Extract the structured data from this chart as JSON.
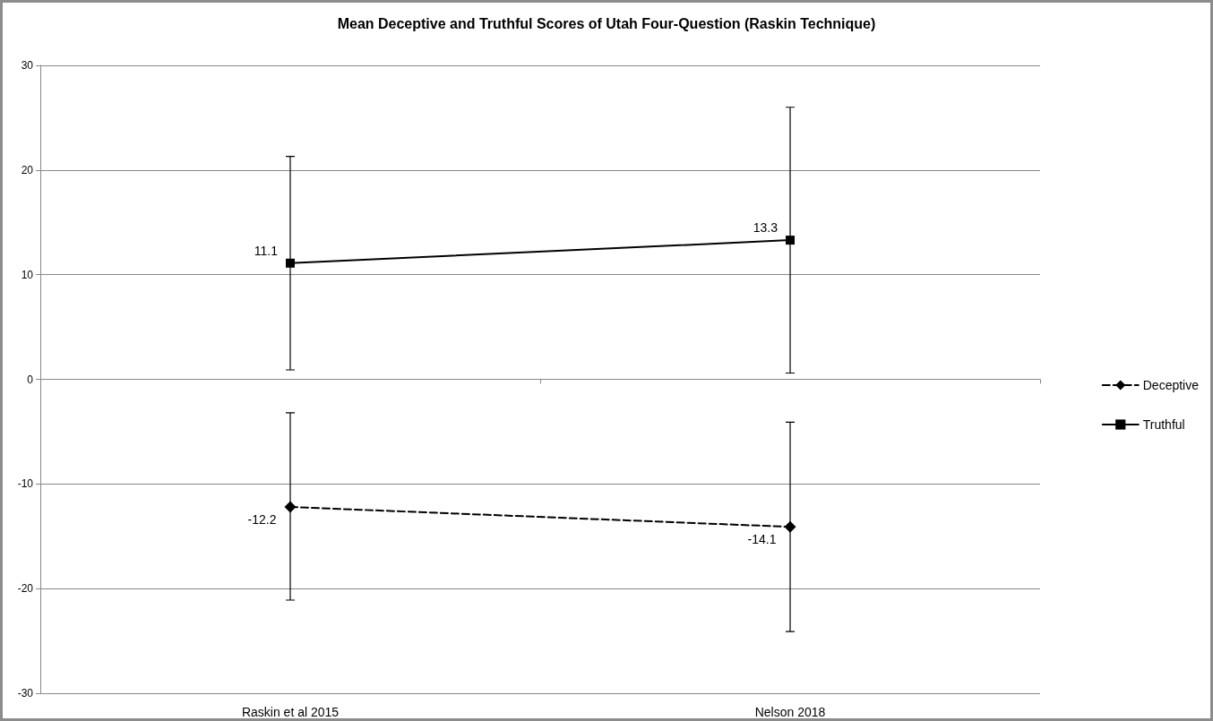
{
  "chart_data": {
    "type": "line",
    "title": "Mean Deceptive and Truthful Scores of Utah Four-Question (Raskin Technique)",
    "categories": [
      "Raskin et al 2015",
      "Nelson 2018"
    ],
    "series": [
      {
        "name": "Deceptive",
        "color": "#000000",
        "values": [
          -12.2,
          -14.1
        ],
        "errors": [
          [
            -21.1,
            -3.2
          ],
          [
            -24.1,
            -4.1
          ]
        ],
        "marker": "diamond",
        "line_style": "dashed"
      },
      {
        "name": "Truthful",
        "color": "#000000",
        "values": [
          11.1,
          13.3
        ],
        "errors": [
          [
            0.9,
            21.3
          ],
          [
            0.6,
            26
          ]
        ],
        "marker": "square",
        "line_style": "solid"
      }
    ],
    "ylim": [
      -30,
      30
    ],
    "yticks": [
      -30,
      -20,
      -10,
      0,
      10,
      20,
      30
    ],
    "grid": "y",
    "legend": "right",
    "data_labels": true
  }
}
